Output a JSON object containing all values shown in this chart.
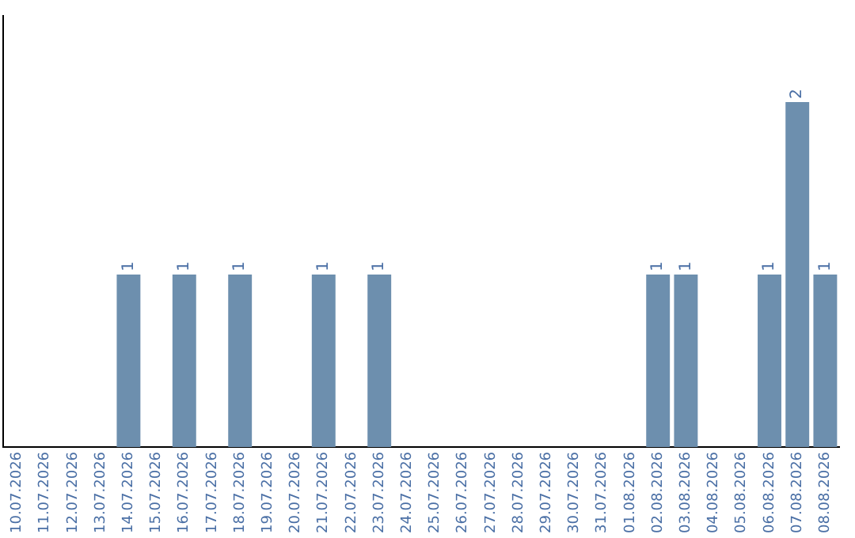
{
  "chart_data": {
    "type": "bar",
    "categories": [
      "10.07.2026",
      "11.07.2026",
      "12.07.2026",
      "13.07.2026",
      "14.07.2026",
      "15.07.2026",
      "16.07.2026",
      "17.07.2026",
      "18.07.2026",
      "19.07.2026",
      "20.07.2026",
      "21.07.2026",
      "22.07.2026",
      "23.07.2026",
      "24.07.2026",
      "25.07.2026",
      "26.07.2026",
      "27.07.2026",
      "28.07.2026",
      "29.07.2026",
      "30.07.2026",
      "31.07.2026",
      "01.08.2026",
      "02.08.2026",
      "03.08.2026",
      "04.08.2026",
      "05.08.2026",
      "06.08.2026",
      "07.08.2026",
      "08.08.2026"
    ],
    "values": [
      0,
      0,
      0,
      0,
      1,
      0,
      1,
      0,
      1,
      0,
      0,
      1,
      0,
      1,
      0,
      0,
      0,
      0,
      0,
      0,
      0,
      0,
      0,
      1,
      1,
      0,
      0,
      1,
      2,
      1
    ],
    "value_labels": [
      null,
      null,
      null,
      null,
      "1",
      null,
      "1",
      null,
      "1",
      null,
      null,
      "1",
      null,
      "1",
      null,
      null,
      null,
      null,
      null,
      null,
      null,
      null,
      null,
      "1",
      "1",
      null,
      null,
      "1",
      "2",
      "1"
    ],
    "color": "#6d8fae",
    "tick_labels": "x",
    "grid": false,
    "legend": false
  }
}
